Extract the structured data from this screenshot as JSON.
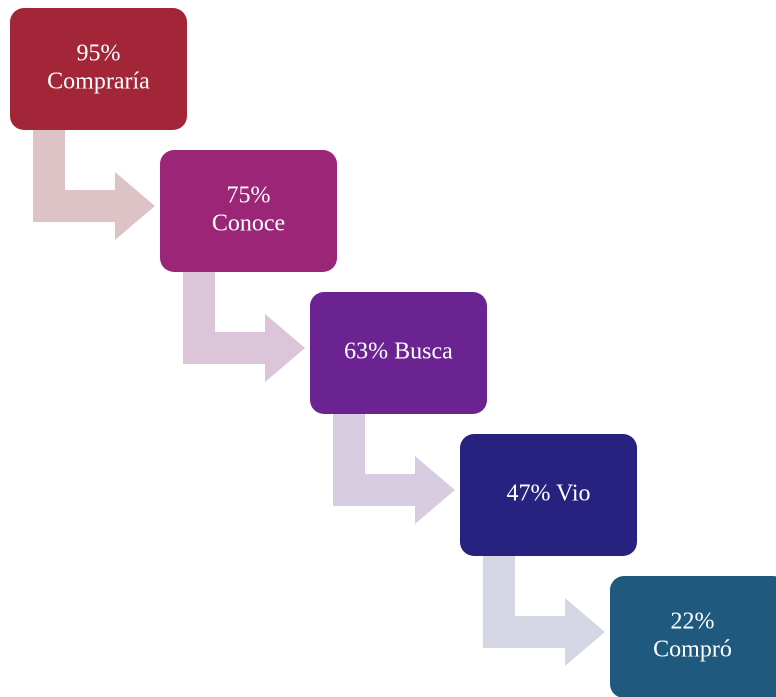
{
  "nodes": [
    {
      "lines": [
        "95%",
        "Compraría"
      ]
    },
    {
      "lines": [
        "75%",
        "Conoce"
      ]
    },
    {
      "lines": [
        "63% Busca"
      ]
    },
    {
      "lines": [
        "47% Vio"
      ]
    },
    {
      "lines": [
        "22%",
        "Compró"
      ]
    }
  ]
}
